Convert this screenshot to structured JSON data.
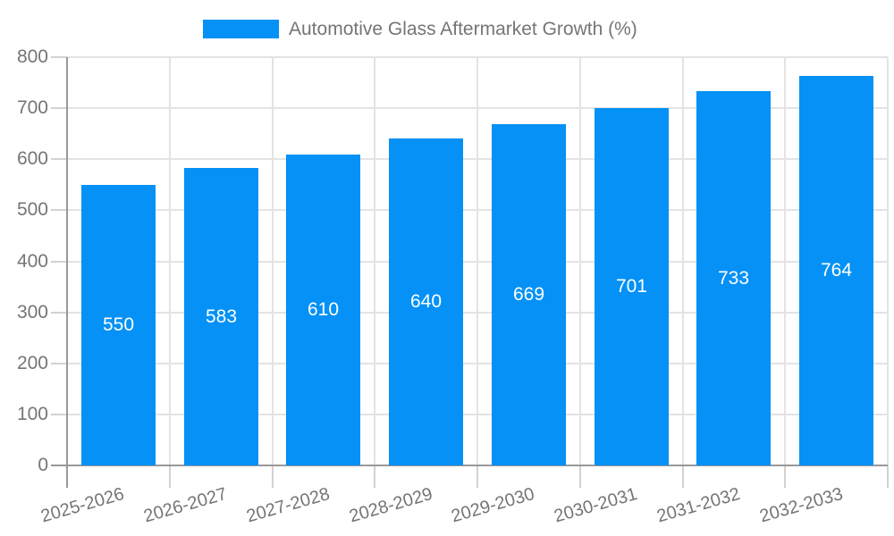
{
  "chart_data": {
    "type": "bar",
    "title": "Automotive Glass Aftermarket Growth (%)",
    "categories": [
      "2025-2026",
      "2026-2027",
      "2027-2028",
      "2028-2029",
      "2029-2030",
      "2030-2031",
      "2031-2032",
      "2032-2033"
    ],
    "values": [
      550,
      583,
      610,
      640,
      669,
      701,
      733,
      764
    ],
    "xlabel": "",
    "ylabel": "",
    "ylim": [
      0,
      800
    ],
    "ytick_step": 100,
    "ytick_labels": [
      "0",
      "100",
      "200",
      "300",
      "400",
      "500",
      "600",
      "700",
      "800"
    ],
    "grid": true,
    "legend_position": "top-center",
    "value_labels_position": "inside-center",
    "colors": {
      "bar": "#0591f5",
      "value_label": "#ffffff",
      "axis_label": "#757575",
      "legend_text": "#757575",
      "gridline": "#e3e3e3",
      "tick": "#d2d2d2",
      "axis_line": "#999999",
      "background": "#ffffff"
    }
  }
}
